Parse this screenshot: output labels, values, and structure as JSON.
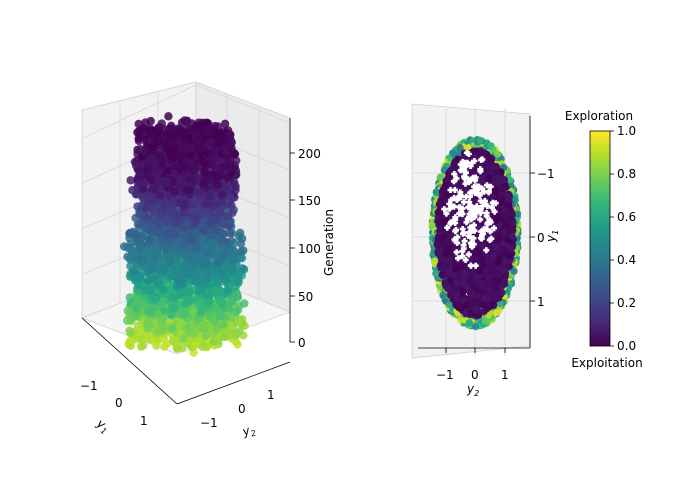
{
  "chart_data": [
    {
      "type": "scatter",
      "projection": "3d",
      "xlabel": "y_1",
      "ylabel": "y_2",
      "zlabel": "Generation",
      "x_ticks": [
        "−1",
        "0",
        "1"
      ],
      "y_ticks": [
        "−1",
        "0",
        "1"
      ],
      "z_ticks": [
        "0",
        "50",
        "100",
        "150",
        "200"
      ],
      "zlim": [
        0,
        225
      ],
      "color_variable": "exploration",
      "color_trend": [
        {
          "generation": 0,
          "exploration": 0.9
        },
        {
          "generation": 25,
          "exploration": 0.8
        },
        {
          "generation": 50,
          "exploration": 0.65
        },
        {
          "generation": 75,
          "exploration": 0.5
        },
        {
          "generation": 100,
          "exploration": 0.4
        },
        {
          "generation": 125,
          "exploration": 0.28
        },
        {
          "generation": 150,
          "exploration": 0.15
        },
        {
          "generation": 175,
          "exploration": 0.05
        },
        {
          "generation": 200,
          "exploration": 0.02
        },
        {
          "generation": 225,
          "exploration": 0.0
        }
      ],
      "grid": true
    },
    {
      "type": "scatter",
      "projection": "3d-top-view",
      "xlabel": "y_2",
      "ylabel": "y_1",
      "x_ticks": [
        "−1",
        "0",
        "1"
      ],
      "y_ticks": [
        "−1",
        "0",
        "1"
      ],
      "y_inverted": true,
      "population_ellipse": {
        "y2_half_width": 1.0,
        "y1_half_height": 1.45
      },
      "white_markers": "current generation individuals",
      "grid": true
    }
  ],
  "colorbar": {
    "top_label": "Exploration",
    "bottom_label": "Exploitation",
    "ticks": [
      "0.0",
      "0.2",
      "0.4",
      "0.6",
      "0.8",
      "1.0"
    ],
    "range": [
      0,
      1
    ],
    "colormap": "viridis",
    "colors": [
      "#440154",
      "#482878",
      "#3e4989",
      "#31688e",
      "#26828e",
      "#1f9e89",
      "#35b779",
      "#6ece58",
      "#b5de2b",
      "#fde725"
    ]
  }
}
